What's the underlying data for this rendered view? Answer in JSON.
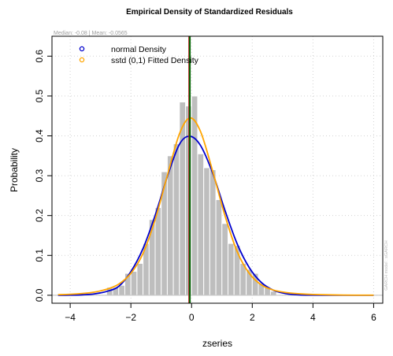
{
  "chart_data": {
    "type": "bar",
    "title": "Empirical Density of Standardized Residuals",
    "subtitle": "Median:  -0.08 | Mean:  -0.0565",
    "xlabel": "zseries",
    "ylabel": "Probability",
    "side_note": "GARCH model : sGARCH",
    "xlim": [
      -4.6,
      6.3
    ],
    "ylim": [
      -0.02,
      0.65
    ],
    "x_ticks": [
      -4,
      -2,
      0,
      2,
      4,
      6
    ],
    "x_tick_labels": [
      "−4",
      "−2",
      "0",
      "2",
      "4",
      "6"
    ],
    "y_ticks": [
      0.0,
      0.1,
      0.2,
      0.3,
      0.4,
      0.5,
      0.6
    ],
    "y_tick_labels": [
      "0.0",
      "0.1",
      "0.2",
      "0.3",
      "0.4",
      "0.5",
      "0.6"
    ],
    "grid": true,
    "legend": {
      "position": "top-left",
      "entries": [
        {
          "label": "normal Density",
          "color": "#0000cd"
        },
        {
          "label": "sstd (0,1) Fitted Density",
          "color": "#ffa500"
        }
      ]
    },
    "histogram": {
      "color": "#bebebe",
      "bin_width": 0.2,
      "bins": [
        {
          "x0": -2.8,
          "density": 0.02
        },
        {
          "x0": -2.6,
          "density": 0.02
        },
        {
          "x0": -2.4,
          "density": 0.025
        },
        {
          "x0": -2.2,
          "density": 0.055
        },
        {
          "x0": -2.0,
          "density": 0.06
        },
        {
          "x0": -1.8,
          "density": 0.08
        },
        {
          "x0": -1.6,
          "density": 0.13
        },
        {
          "x0": -1.4,
          "density": 0.19
        },
        {
          "x0": -1.2,
          "density": 0.22
        },
        {
          "x0": -1.0,
          "density": 0.31
        },
        {
          "x0": -0.8,
          "density": 0.35
        },
        {
          "x0": -0.6,
          "density": 0.38
        },
        {
          "x0": -0.4,
          "density": 0.485
        },
        {
          "x0": -0.2,
          "density": 0.475
        },
        {
          "x0": 0.0,
          "density": 0.5
        },
        {
          "x0": 0.2,
          "density": 0.355
        },
        {
          "x0": 0.4,
          "density": 0.32
        },
        {
          "x0": 0.6,
          "density": 0.315
        },
        {
          "x0": 0.8,
          "density": 0.24
        },
        {
          "x0": 1.0,
          "density": 0.18
        },
        {
          "x0": 1.2,
          "density": 0.13
        },
        {
          "x0": 1.4,
          "density": 0.125
        },
        {
          "x0": 1.6,
          "density": 0.08
        },
        {
          "x0": 1.8,
          "density": 0.065
        },
        {
          "x0": 2.0,
          "density": 0.055
        },
        {
          "x0": 2.2,
          "density": 0.03
        },
        {
          "x0": 2.4,
          "density": 0.02
        },
        {
          "x0": 2.6,
          "density": 0.01
        }
      ]
    },
    "series": [
      {
        "name": "normal Density",
        "color": "#0000cd",
        "type": "line",
        "x": [
          -4.4,
          -4.0,
          -3.6,
          -3.2,
          -2.8,
          -2.4,
          -2.0,
          -1.6,
          -1.2,
          -0.8,
          -0.4,
          -0.05,
          0.3,
          0.7,
          1.1,
          1.5,
          1.9,
          2.3,
          2.7,
          3.1,
          3.5,
          4.0,
          5.0,
          6.0
        ],
        "y": [
          0.0,
          0.0003,
          0.0011,
          0.0035,
          0.0095,
          0.0224,
          0.0593,
          0.1173,
          0.2006,
          0.2976,
          0.3788,
          0.3989,
          0.3751,
          0.3056,
          0.2131,
          0.1295,
          0.0694,
          0.032,
          0.0126,
          0.0043,
          0.0012,
          0.0002,
          0.0,
          0.0
        ]
      },
      {
        "name": "sstd (0,1) Fitted Density",
        "color": "#ffa500",
        "type": "line",
        "x": [
          -4.4,
          -4.0,
          -3.6,
          -3.2,
          -2.8,
          -2.4,
          -2.0,
          -1.6,
          -1.2,
          -0.8,
          -0.4,
          -0.05,
          0.3,
          0.7,
          1.1,
          1.5,
          1.9,
          2.3,
          2.7,
          3.1,
          3.5,
          4.0,
          5.0,
          6.0
        ],
        "y": [
          0.0015,
          0.0025,
          0.0045,
          0.008,
          0.015,
          0.028,
          0.055,
          0.105,
          0.19,
          0.3,
          0.405,
          0.445,
          0.41,
          0.31,
          0.2,
          0.11,
          0.055,
          0.026,
          0.013,
          0.007,
          0.004,
          0.002,
          0.0005,
          0.0002
        ]
      }
    ],
    "vlines": [
      {
        "name": "median",
        "x": -0.08,
        "color": "#b22222"
      },
      {
        "name": "mean",
        "x": -0.0565,
        "color": "#006400"
      }
    ],
    "hline": {
      "y": 0,
      "color": "#bebebe"
    }
  }
}
